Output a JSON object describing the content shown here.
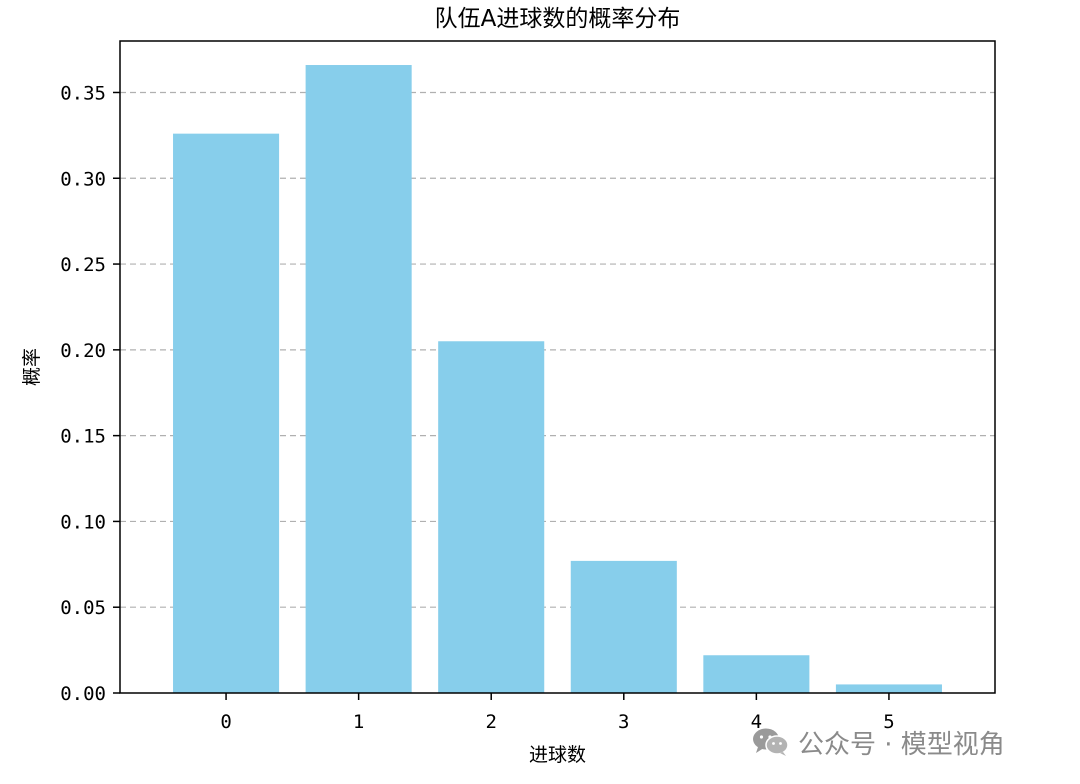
{
  "chart_data": {
    "type": "bar",
    "title": "队伍A进球数的概率分布",
    "xlabel": "进球数",
    "ylabel": "概率",
    "categories": [
      "0",
      "1",
      "2",
      "3",
      "4",
      "5"
    ],
    "values": [
      0.326,
      0.366,
      0.205,
      0.077,
      0.022,
      0.005
    ],
    "ylim": [
      0,
      0.38
    ],
    "yticks": [
      "0.00",
      "0.05",
      "0.10",
      "0.15",
      "0.20",
      "0.25",
      "0.30",
      "0.35"
    ],
    "bar_color": "#87CEEB",
    "grid": "horizontal dashed",
    "legend": "none"
  },
  "watermark": {
    "icon": "wechat-icon",
    "text": "公众号 · 模型视角"
  }
}
